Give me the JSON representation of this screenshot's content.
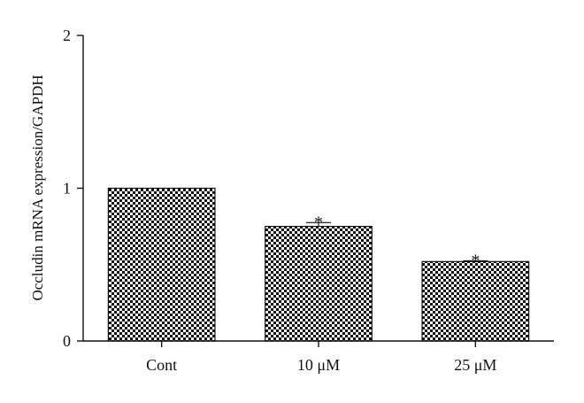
{
  "chart_data": {
    "type": "bar",
    "title": "",
    "xlabel": "",
    "ylabel": "Occludin mRNA expression/GAPDH",
    "ylim": [
      0,
      2
    ],
    "yticks": [
      "0",
      "1",
      "2"
    ],
    "categories": [
      "Cont",
      "10 μM",
      "25 μM"
    ],
    "values": [
      1.0,
      0.75,
      0.52
    ],
    "errors": [
      0,
      0.025,
      0.005
    ],
    "significance": [
      "",
      "*",
      "*"
    ],
    "bar_fill": "checkerboard",
    "colors": {
      "ink": "#111111",
      "bar_light": "#ffffff",
      "bar_dark": "#111111"
    },
    "grid": false,
    "legend": "none"
  }
}
